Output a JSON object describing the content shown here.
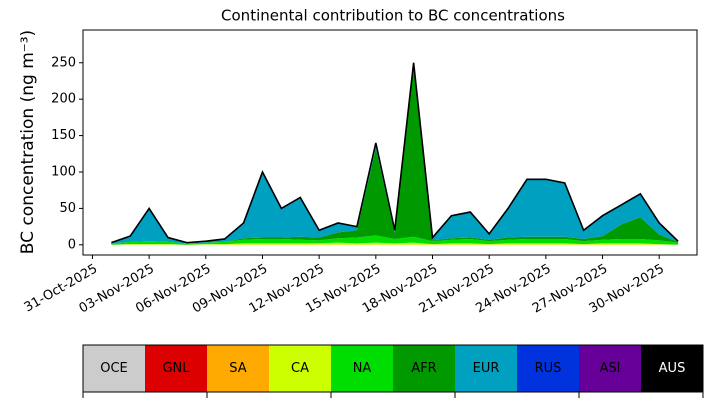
{
  "chart_data": {
    "type": "stacked_area",
    "title": "Continental contribution to BC concentrations",
    "y_label": "BC concentration (ng m⁻³)",
    "x": [
      "2025-11-01",
      "2025-11-02",
      "2025-11-03",
      "2025-11-04",
      "2025-11-05",
      "2025-11-06",
      "2025-11-07",
      "2025-11-08",
      "2025-11-09",
      "2025-11-10",
      "2025-11-11",
      "2025-11-12",
      "2025-11-13",
      "2025-11-14",
      "2025-11-15",
      "2025-11-16",
      "2025-11-17",
      "2025-11-18",
      "2025-11-19",
      "2025-11-20",
      "2025-11-21",
      "2025-11-22",
      "2025-11-23",
      "2025-11-24",
      "2025-11-25",
      "2025-11-26",
      "2025-11-27",
      "2025-11-28",
      "2025-11-29",
      "2025-11-30",
      "2025-12-01"
    ],
    "series": [
      {
        "name": "CA",
        "color": "#ccff00",
        "values": [
          0,
          1,
          1,
          1,
          0,
          1,
          1,
          2,
          2,
          2,
          2,
          2,
          3,
          2,
          3,
          2,
          3,
          1,
          2,
          2,
          1,
          2,
          2,
          2,
          2,
          1,
          2,
          2,
          2,
          1,
          0
        ]
      },
      {
        "name": "NA",
        "color": "#00dd00",
        "values": [
          2,
          3,
          4,
          3,
          2,
          2,
          3,
          5,
          6,
          6,
          5,
          4,
          6,
          8,
          10,
          6,
          8,
          4,
          5,
          6,
          4,
          5,
          6,
          6,
          6,
          4,
          5,
          6,
          6,
          5,
          3
        ]
      },
      {
        "name": "AFR",
        "color": "#009900",
        "values": [
          0,
          0,
          0,
          0,
          0,
          0,
          0,
          2,
          2,
          2,
          4,
          4,
          8,
          10,
          120,
          8,
          235,
          1,
          2,
          2,
          2,
          3,
          3,
          3,
          3,
          3,
          5,
          20,
          30,
          8,
          1
        ]
      },
      {
        "name": "EUR",
        "color": "#00a0c0",
        "values": [
          1,
          8,
          45,
          6,
          1,
          2,
          4,
          21,
          90,
          40,
          54,
          10,
          13,
          5,
          7,
          4,
          4,
          4,
          31,
          35,
          8,
          40,
          79,
          79,
          74,
          12,
          28,
          27,
          32,
          16,
          1
        ]
      }
    ],
    "outline_color": "#000000",
    "xlim": [
      "2025-10-30T12:00",
      "2025-12-02T00:00"
    ],
    "xticks": [
      {
        "value": "2025-10-31",
        "label": "31-Oct-2025"
      },
      {
        "value": "2025-11-03",
        "label": "03-Nov-2025"
      },
      {
        "value": "2025-11-06",
        "label": "06-Nov-2025"
      },
      {
        "value": "2025-11-09",
        "label": "09-Nov-2025"
      },
      {
        "value": "2025-11-12",
        "label": "12-Nov-2025"
      },
      {
        "value": "2025-11-15",
        "label": "15-Nov-2025"
      },
      {
        "value": "2025-11-18",
        "label": "18-Nov-2025"
      },
      {
        "value": "2025-11-21",
        "label": "21-Nov-2025"
      },
      {
        "value": "2025-11-24",
        "label": "24-Nov-2025"
      },
      {
        "value": "2025-11-27",
        "label": "27-Nov-2025"
      },
      {
        "value": "2025-11-30",
        "label": "30-Nov-2025"
      }
    ],
    "ylim": [
      -14,
      295
    ],
    "yticks": [
      0,
      50,
      100,
      150,
      200,
      250
    ],
    "colorbar": {
      "labels": [
        "OCE",
        "GNL",
        "SA",
        "CA",
        "NA",
        "AFR",
        "EUR",
        "RUS",
        "ASI",
        "AUS"
      ],
      "colors": [
        "#cccccc",
        "#dd0000",
        "#ffaa00",
        "#ccff00",
        "#00dd00",
        "#009900",
        "#00a0c0",
        "#0033dd",
        "#660099",
        "#000000"
      ],
      "text_colors": [
        "#000000",
        "#000000",
        "#000000",
        "#000000",
        "#000000",
        "#000000",
        "#000000",
        "#000000",
        "#000000",
        "#ffffff"
      ]
    }
  }
}
